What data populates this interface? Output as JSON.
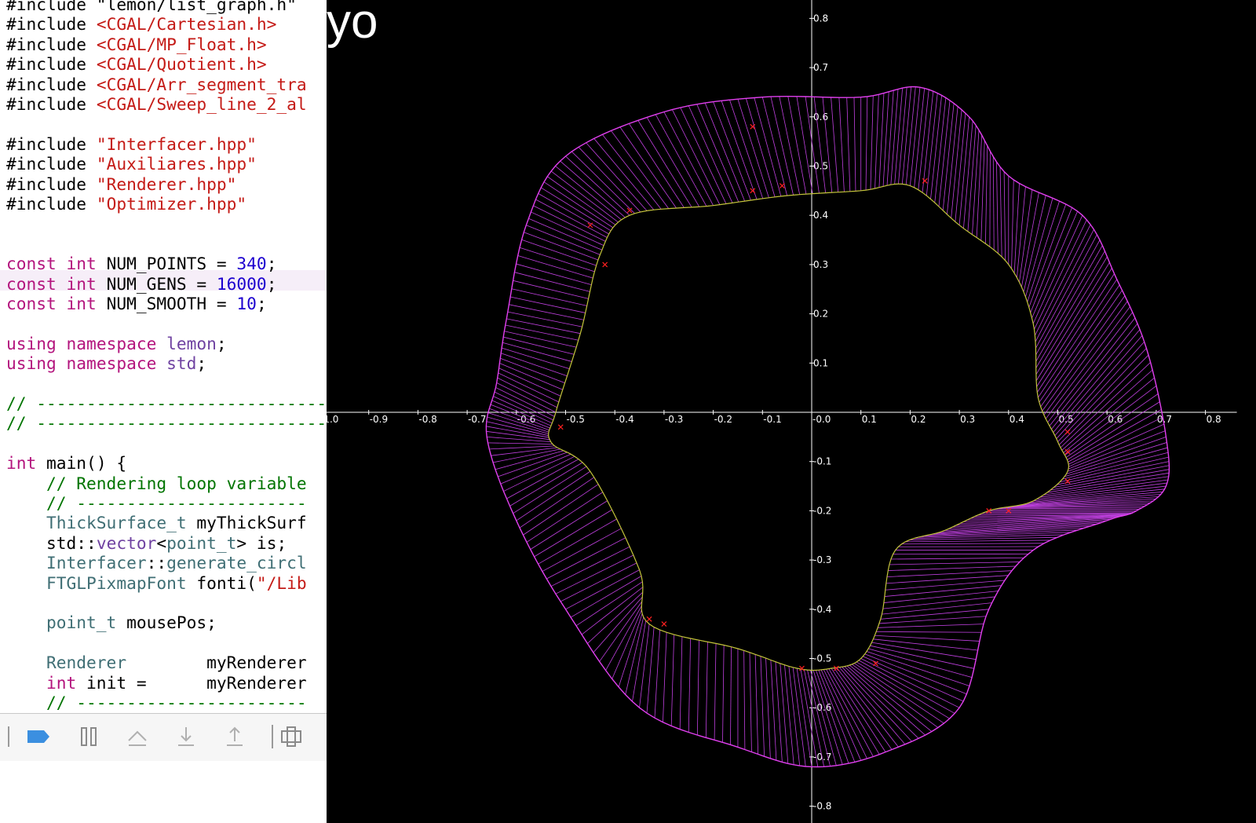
{
  "editor": {
    "lines": [
      [
        [
          "p",
          "#include \"lemon/list_graph.h\""
        ]
      ],
      [
        [
          "p",
          "#include "
        ],
        [
          "str",
          "<CGAL/Cartesian.h>"
        ]
      ],
      [
        [
          "p",
          "#include "
        ],
        [
          "str",
          "<CGAL/MP_Float.h>"
        ]
      ],
      [
        [
          "p",
          "#include "
        ],
        [
          "str",
          "<CGAL/Quotient.h>"
        ]
      ],
      [
        [
          "p",
          "#include "
        ],
        [
          "str",
          "<CGAL/Arr_segment_tra"
        ]
      ],
      [
        [
          "p",
          "#include "
        ],
        [
          "str",
          "<CGAL/Sweep_line_2_al"
        ]
      ],
      [],
      [
        [
          "p",
          "#include "
        ],
        [
          "str",
          "\"Interfacer.hpp\""
        ]
      ],
      [
        [
          "p",
          "#include "
        ],
        [
          "str",
          "\"Auxiliares.hpp\""
        ]
      ],
      [
        [
          "p",
          "#include "
        ],
        [
          "str",
          "\"Renderer.hpp\""
        ]
      ],
      [
        [
          "p",
          "#include "
        ],
        [
          "str",
          "\"Optimizer.hpp\""
        ]
      ],
      [],
      [],
      [
        [
          "k",
          "const"
        ],
        [
          "p",
          " "
        ],
        [
          "k",
          "int"
        ],
        [
          "p",
          " NUM_POINTS = "
        ],
        [
          "num",
          "340"
        ],
        [
          "p",
          ";"
        ]
      ],
      [
        [
          "k",
          "const"
        ],
        [
          "p",
          " "
        ],
        [
          "k",
          "int"
        ],
        [
          "p",
          " NUM_GENS = "
        ],
        [
          "num",
          "16000"
        ],
        [
          "p",
          ";"
        ]
      ],
      [
        [
          "k",
          "const"
        ],
        [
          "p",
          " "
        ],
        [
          "k",
          "int"
        ],
        [
          "p",
          " NUM_SMOOTH = "
        ],
        [
          "num",
          "10"
        ],
        [
          "p",
          ";"
        ]
      ],
      [],
      [
        [
          "k",
          "using"
        ],
        [
          "p",
          " "
        ],
        [
          "k",
          "namespace"
        ],
        [
          "p",
          " "
        ],
        [
          "fn",
          "lemon"
        ],
        [
          "p",
          ";"
        ]
      ],
      [
        [
          "k",
          "using"
        ],
        [
          "p",
          " "
        ],
        [
          "k",
          "namespace"
        ],
        [
          "p",
          " "
        ],
        [
          "fn",
          "std"
        ],
        [
          "p",
          ";"
        ]
      ],
      [],
      [
        [
          "cmt",
          "// ------------------------------"
        ]
      ],
      [
        [
          "cmt",
          "// ------------------------------"
        ]
      ],
      [],
      [
        [
          "k",
          "int"
        ],
        [
          "p",
          " main() {"
        ]
      ],
      [
        [
          "cmt",
          "    // Rendering loop variable"
        ]
      ],
      [
        [
          "cmt",
          "    // -----------------------"
        ]
      ],
      [
        [
          "typ",
          "    ThickSurface_t"
        ],
        [
          "p",
          " myThickSurf"
        ]
      ],
      [
        [
          "p",
          "    std::"
        ],
        [
          "fn",
          "vector"
        ],
        [
          "p",
          "<"
        ],
        [
          "typ",
          "point_t"
        ],
        [
          "p",
          "> is;"
        ]
      ],
      [
        [
          "typ",
          "    Interfacer"
        ],
        [
          "p",
          "::"
        ],
        [
          "typ",
          "generate_circl"
        ]
      ],
      [
        [
          "typ",
          "    FTGLPixmapFont"
        ],
        [
          "p",
          " fonti("
        ],
        [
          "str",
          "\"/Lib"
        ]
      ],
      [],
      [
        [
          "typ",
          "    point_t"
        ],
        [
          "p",
          " mousePos;"
        ]
      ],
      [],
      [
        [
          "typ",
          "    Renderer"
        ],
        [
          "p",
          "        myRenderer"
        ]
      ],
      [
        [
          "k",
          "    int"
        ],
        [
          "p",
          " init =      myRenderer"
        ]
      ],
      [
        [
          "cmt",
          "    // -----------------------"
        ]
      ]
    ]
  },
  "debug_bar": {
    "buttons": [
      {
        "name": "breakpoints-toggle-button",
        "icon": "breakpoint-icon",
        "active": true
      },
      {
        "name": "pause-button",
        "icon": "pause-icon",
        "active": false
      },
      {
        "name": "step-over-button",
        "icon": "step-over-icon",
        "active": false
      },
      {
        "name": "step-into-button",
        "icon": "step-into-icon",
        "active": false
      },
      {
        "name": "step-out-button",
        "icon": "step-out-icon",
        "active": false
      },
      {
        "name": "debug-view-hierarchy-button",
        "icon": "view-hierarchy-icon",
        "active": false
      }
    ]
  },
  "gl_window": {
    "title": "yo"
  },
  "chart_data": {
    "type": "line",
    "title": "",
    "xlabel": "",
    "ylabel": "",
    "xlim": [
      -1.0,
      0.8
    ],
    "ylim": [
      -0.8,
      0.8
    ],
    "x_ticks": [
      "-1.0",
      "-0.9",
      "-0.8",
      "-0.7",
      "-0.6",
      "-0.5",
      "-0.4",
      "-0.3",
      "-0.2",
      "-0.1",
      "-0.0",
      "0.1",
      "0.2",
      "0.3",
      "0.4",
      "0.5",
      "0.6",
      "0.7",
      "0.8"
    ],
    "y_ticks": [
      "0.8",
      "0.7",
      "0.6",
      "0.5",
      "0.4",
      "0.3",
      "0.2",
      "0.1",
      "-0.1",
      "-0.2",
      "-0.3",
      "-0.4",
      "-0.5",
      "-0.6",
      "-0.7",
      "-0.8"
    ],
    "grid": false,
    "colors": {
      "outer": "#e23ff0",
      "inner": "#c4c43a",
      "connector": "#c040e0",
      "marker": "#ff2020",
      "axis": "#ffffff"
    },
    "series": [
      {
        "role": "outer",
        "points": [
          [
            -0.64,
            0.06
          ],
          [
            -0.62,
            0.19
          ],
          [
            -0.58,
            0.38
          ],
          [
            -0.5,
            0.52
          ],
          [
            -0.3,
            0.61
          ],
          [
            -0.1,
            0.64
          ],
          [
            0.1,
            0.64
          ],
          [
            0.22,
            0.66
          ],
          [
            0.32,
            0.6
          ],
          [
            0.4,
            0.48
          ],
          [
            0.55,
            0.4
          ],
          [
            0.62,
            0.27
          ],
          [
            0.68,
            0.13
          ],
          [
            0.72,
            -0.05
          ],
          [
            0.72,
            -0.15
          ],
          [
            0.66,
            -0.2
          ],
          [
            0.6,
            -0.22
          ],
          [
            0.45,
            -0.28
          ],
          [
            0.36,
            -0.4
          ],
          [
            0.3,
            -0.6
          ],
          [
            0.15,
            -0.69
          ],
          [
            0.0,
            -0.72
          ],
          [
            -0.15,
            -0.68
          ],
          [
            -0.35,
            -0.6
          ],
          [
            -0.5,
            -0.4
          ],
          [
            -0.6,
            -0.22
          ],
          [
            -0.66,
            -0.05
          ]
        ]
      },
      {
        "role": "inner",
        "points": [
          [
            -0.52,
            0.0
          ],
          [
            -0.47,
            0.16
          ],
          [
            -0.43,
            0.32
          ],
          [
            -0.37,
            0.4
          ],
          [
            -0.2,
            0.42
          ],
          [
            -0.05,
            0.44
          ],
          [
            0.1,
            0.45
          ],
          [
            0.2,
            0.46
          ],
          [
            0.3,
            0.38
          ],
          [
            0.4,
            0.3
          ],
          [
            0.45,
            0.18
          ],
          [
            0.46,
            0.03
          ],
          [
            0.5,
            -0.06
          ],
          [
            0.52,
            -0.12
          ],
          [
            0.45,
            -0.18
          ],
          [
            0.36,
            -0.2
          ],
          [
            0.27,
            -0.24
          ],
          [
            0.17,
            -0.28
          ],
          [
            0.14,
            -0.42
          ],
          [
            0.1,
            -0.5
          ],
          [
            0.04,
            -0.52
          ],
          [
            -0.03,
            -0.52
          ],
          [
            -0.15,
            -0.48
          ],
          [
            -0.33,
            -0.43
          ],
          [
            -0.35,
            -0.32
          ],
          [
            -0.45,
            -0.12
          ],
          [
            -0.53,
            -0.06
          ]
        ]
      },
      {
        "role": "marker",
        "points": [
          [
            -0.51,
            -0.03
          ],
          [
            -0.45,
            0.38
          ],
          [
            -0.42,
            0.3
          ],
          [
            -0.37,
            0.41
          ],
          [
            -0.12,
            0.58
          ],
          [
            -0.12,
            0.45
          ],
          [
            -0.06,
            0.46
          ],
          [
            0.23,
            0.47
          ],
          [
            0.52,
            -0.04
          ],
          [
            0.52,
            -0.08
          ],
          [
            0.52,
            -0.14
          ],
          [
            0.4,
            -0.2
          ],
          [
            0.36,
            -0.2
          ],
          [
            0.13,
            -0.51
          ],
          [
            0.05,
            -0.52
          ],
          [
            -0.02,
            -0.52
          ],
          [
            -0.33,
            -0.42
          ],
          [
            -0.3,
            -0.43
          ]
        ]
      }
    ]
  }
}
